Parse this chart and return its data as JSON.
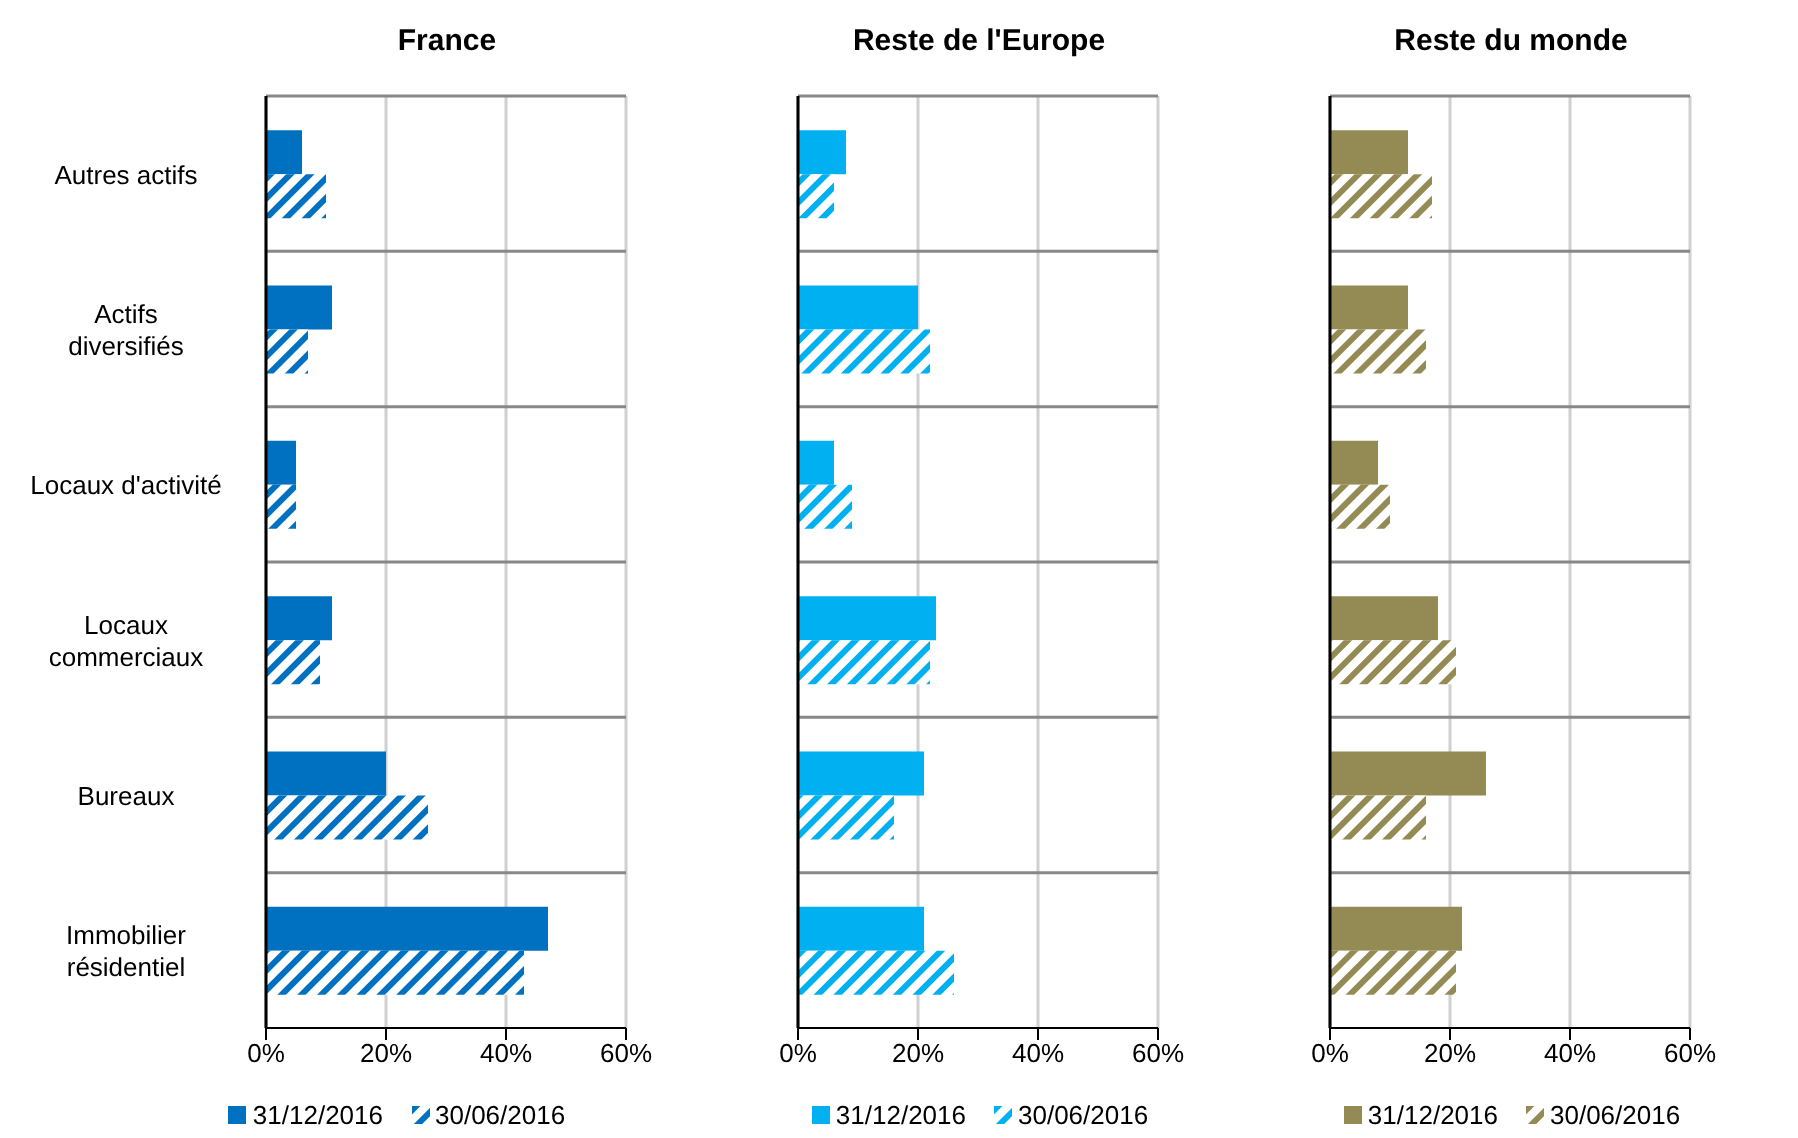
{
  "chart_data": [
    {
      "type": "bar",
      "orientation": "horizontal",
      "title": "France",
      "categories": [
        "Autres actifs",
        "Actifs diversifiés",
        "Locaux d'activité",
        "Locaux commerciaux",
        "Bureaux",
        "Immobilier résidentiel"
      ],
      "series": [
        {
          "name": "31/12/2016",
          "color": "#0070c0",
          "values": [
            6,
            11,
            5,
            11,
            20,
            47
          ]
        },
        {
          "name": "30/06/2016",
          "color": "#0070c0",
          "values": [
            10,
            7,
            5,
            9,
            27,
            43
          ]
        }
      ],
      "xlim": [
        0,
        60
      ],
      "xticks": [
        {
          "value": 0,
          "label": "0%"
        },
        {
          "value": 20,
          "label": "20%"
        },
        {
          "value": 40,
          "label": "40%"
        },
        {
          "value": 60,
          "label": "60%"
        }
      ],
      "grid": true,
      "legend": "bottom"
    },
    {
      "type": "bar",
      "orientation": "horizontal",
      "title": "Reste de l'Europe",
      "categories": [
        null,
        null,
        null,
        null,
        null,
        null
      ],
      "series": [
        {
          "name": "31/12/2016",
          "color": "#00b0f0",
          "values": [
            8,
            20,
            6,
            23,
            21,
            21
          ]
        },
        {
          "name": "30/06/2016",
          "color": "#00b0f0",
          "values": [
            6,
            22,
            9,
            22,
            16,
            26
          ]
        }
      ],
      "xlim": [
        0,
        60
      ],
      "xticks": [
        {
          "value": 0,
          "label": "0%"
        },
        {
          "value": 20,
          "label": "20%"
        },
        {
          "value": 40,
          "label": "40%"
        },
        {
          "value": 60,
          "label": "60%"
        }
      ],
      "grid": true,
      "legend": "bottom",
      "tick_labels": "x"
    },
    {
      "type": "bar",
      "orientation": "horizontal",
      "title": "Reste du monde",
      "categories": [
        null,
        null,
        null,
        null,
        null,
        null
      ],
      "series": [
        {
          "name": "31/12/2016",
          "color": "#948a54",
          "values": [
            13,
            13,
            8,
            18,
            26,
            22
          ]
        },
        {
          "name": "30/06/2016",
          "color": "#948a54",
          "values": [
            17,
            16,
            10,
            21,
            16,
            21
          ]
        }
      ],
      "xlim": [
        0,
        60
      ],
      "xticks": [
        {
          "value": 0,
          "label": "0%"
        },
        {
          "value": 20,
          "label": "20%"
        },
        {
          "value": 40,
          "label": "40%"
        },
        {
          "value": 60,
          "label": "60%"
        }
      ],
      "grid": true,
      "legend": "bottom",
      "tick_labels": "x"
    }
  ]
}
